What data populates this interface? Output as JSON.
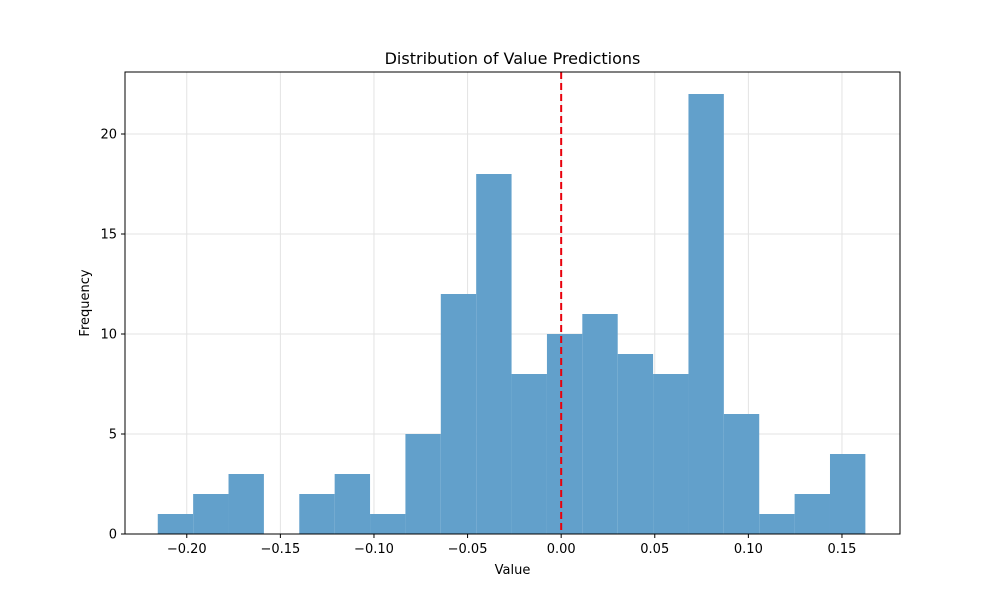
{
  "chart_data": {
    "type": "bar",
    "title": "Distribution of Value Predictions",
    "xlabel": "Value",
    "ylabel": "Frequency",
    "xlim": [
      -0.233,
      0.181
    ],
    "ylim": [
      0,
      23.1
    ],
    "grid": true,
    "bin_edges": [
      -0.2155,
      -0.1966,
      -0.1777,
      -0.1588,
      -0.1399,
      -0.121,
      -0.1021,
      -0.0832,
      -0.0643,
      -0.0454,
      -0.0265,
      -0.0076,
      0.0113,
      0.0302,
      0.0491,
      0.068,
      0.0869,
      0.1058,
      0.1247,
      0.1436,
      0.1625
    ],
    "values": [
      1,
      2,
      3,
      0,
      2,
      3,
      1,
      5,
      12,
      18,
      8,
      10,
      11,
      9,
      8,
      22,
      6,
      1,
      2,
      4
    ],
    "x_ticks": [
      -0.2,
      -0.15,
      -0.1,
      -0.05,
      0.0,
      0.05,
      0.1,
      0.15
    ],
    "x_tick_labels": [
      "−0.20",
      "−0.15",
      "−0.10",
      "−0.05",
      "0.00",
      "0.05",
      "0.10",
      "0.15"
    ],
    "y_ticks": [
      0,
      5,
      10,
      15,
      20
    ],
    "y_tick_labels": [
      "0",
      "5",
      "10",
      "15",
      "20"
    ],
    "reference_line": {
      "x": 0.0,
      "style": "dashed",
      "color": "#e8000b"
    },
    "bar_color": "#62a0cb",
    "grid_color": "#e3e3e3"
  }
}
